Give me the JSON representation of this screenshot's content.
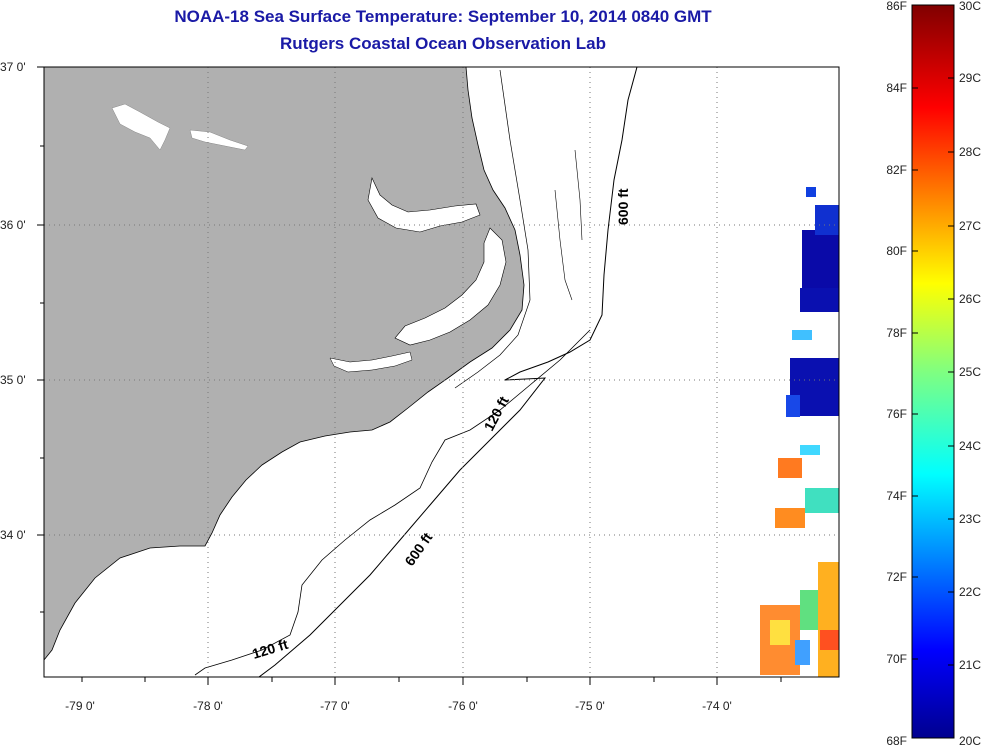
{
  "title": "NOAA-18 Sea Surface Temperature:  September 10, 2014 0840 GMT",
  "subtitle": "Rutgers Coastal Ocean Observation Lab",
  "lat_labels": [
    "37 0'",
    "36 0'",
    "35 0'",
    "34 0'"
  ],
  "lon_labels": [
    "-79 0'",
    "-78 0'",
    "-77 0'",
    "-76 0'",
    "-75 0'",
    "-74 0'"
  ],
  "isobaths": {
    "label_120_north": "120 ft",
    "label_120_south": "120 ft",
    "label_600_north": "600 ft",
    "label_600_south": "600 ft"
  },
  "colorbar": {
    "fahrenheit": [
      "86F",
      "84F",
      "82F",
      "80F",
      "78F",
      "76F",
      "74F",
      "72F",
      "70F",
      "68F"
    ],
    "celsius": [
      "30C",
      "29C",
      "28C",
      "27C",
      "26C",
      "25C",
      "24C",
      "23C",
      "22C",
      "21C",
      "20C"
    ]
  },
  "colors": {
    "title": "#1a1aa6",
    "land": "#b0b0b0",
    "ocean": "#ffffff",
    "grid": "#777777"
  }
}
